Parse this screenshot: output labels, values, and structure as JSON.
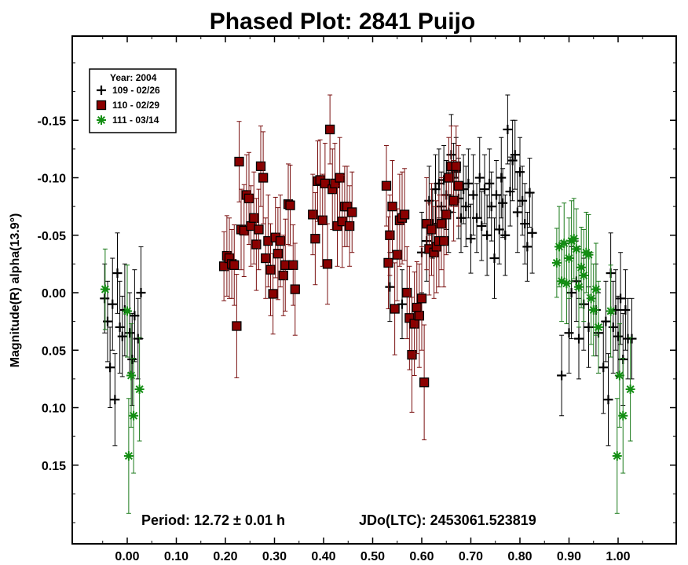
{
  "chart_data": {
    "type": "scatter",
    "title": "Phased Plot: 2841 Puijo",
    "xlabel": "",
    "ylabel": "Magnitude(R) alpha(13.9°)",
    "xlim": [
      -0.1,
      1.08
    ],
    "ylim": [
      0.22,
      -0.22
    ],
    "y_inverted": true,
    "x_ticks": [
      0.0,
      0.1,
      0.2,
      0.3,
      0.4,
      0.5,
      0.6,
      0.7,
      0.8,
      0.9,
      1.0
    ],
    "x_tick_labels": [
      "0.00",
      "0.10",
      "0.20",
      "0.30",
      "0.40",
      "0.50",
      "0.60",
      "0.70",
      "0.80",
      "0.90",
      "1.00"
    ],
    "y_ticks": [
      -0.15,
      -0.1,
      -0.05,
      0.0,
      0.05,
      0.1,
      0.15
    ],
    "y_tick_labels": [
      "-0.15",
      "-0.10",
      "-0.05",
      "0.00",
      "0.05",
      "0.10",
      "0.15"
    ],
    "legend": {
      "title": "Year: 2004",
      "position": "top-left"
    },
    "annotations": {
      "period": "Period: 12.72 ± 0.01 h",
      "epoch": "JDo(LTC): 2453061.523819"
    },
    "series": [
      {
        "name": "109 - 02/26",
        "marker": "plus",
        "color": "#000000",
        "points": [
          [
            -0.046,
            0.005,
            0.03
          ],
          [
            -0.04,
            0.025,
            0.035
          ],
          [
            -0.035,
            0.065,
            0.035
          ],
          [
            -0.03,
            0.01,
            0.04
          ],
          [
            -0.025,
            0.093,
            0.04
          ],
          [
            -0.02,
            -0.017,
            0.035
          ],
          [
            -0.015,
            0.03,
            0.04
          ],
          [
            -0.01,
            0.038,
            0.035
          ],
          [
            -0.005,
            0.015,
            0.04
          ],
          [
            0.005,
            0.035,
            0.035
          ],
          [
            0.01,
            0.058,
            0.04
          ],
          [
            0.015,
            0.02,
            0.04
          ],
          [
            0.022,
            0.04,
            0.035
          ],
          [
            0.028,
            0.0,
            0.04
          ],
          [
            0.535,
            -0.005,
            0.03
          ],
          [
            0.56,
            0.01,
            0.03
          ],
          [
            0.6,
            -0.035,
            0.035
          ],
          [
            0.61,
            -0.045,
            0.035
          ],
          [
            0.615,
            -0.08,
            0.03
          ],
          [
            0.622,
            -0.06,
            0.03
          ],
          [
            0.628,
            -0.09,
            0.03
          ],
          [
            0.635,
            -0.095,
            0.03
          ],
          [
            0.64,
            -0.075,
            0.03
          ],
          [
            0.645,
            -0.098,
            0.03
          ],
          [
            0.65,
            -0.085,
            0.03
          ],
          [
            0.655,
            -0.07,
            0.035
          ],
          [
            0.66,
            -0.12,
            0.035
          ],
          [
            0.665,
            -0.1,
            0.03
          ],
          [
            0.67,
            -0.105,
            0.03
          ],
          [
            0.675,
            -0.082,
            0.035
          ],
          [
            0.68,
            -0.065,
            0.03
          ],
          [
            0.685,
            -0.09,
            0.03
          ],
          [
            0.69,
            -0.075,
            0.035
          ],
          [
            0.695,
            -0.095,
            0.03
          ],
          [
            0.7,
            -0.047,
            0.03
          ],
          [
            0.705,
            -0.085,
            0.035
          ],
          [
            0.712,
            -0.065,
            0.03
          ],
          [
            0.718,
            -0.1,
            0.035
          ],
          [
            0.722,
            -0.058,
            0.03
          ],
          [
            0.728,
            -0.09,
            0.03
          ],
          [
            0.733,
            -0.05,
            0.035
          ],
          [
            0.738,
            -0.095,
            0.03
          ],
          [
            0.742,
            -0.075,
            0.03
          ],
          [
            0.748,
            -0.03,
            0.035
          ],
          [
            0.752,
            -0.085,
            0.03
          ],
          [
            0.758,
            -0.055,
            0.03
          ],
          [
            0.762,
            -0.1,
            0.035
          ],
          [
            0.765,
            -0.078,
            0.03
          ],
          [
            0.77,
            -0.05,
            0.035
          ],
          [
            0.775,
            -0.142,
            0.03
          ],
          [
            0.78,
            -0.088,
            0.03
          ],
          [
            0.785,
            -0.115,
            0.035
          ],
          [
            0.79,
            -0.12,
            0.03
          ],
          [
            0.795,
            -0.07,
            0.035
          ],
          [
            0.8,
            -0.105,
            0.03
          ],
          [
            0.805,
            -0.08,
            0.03
          ],
          [
            0.81,
            -0.06,
            0.035
          ],
          [
            0.815,
            -0.04,
            0.03
          ],
          [
            0.82,
            -0.087,
            0.03
          ],
          [
            0.825,
            -0.052,
            0.035
          ],
          [
            0.885,
            0.072,
            0.035
          ],
          [
            0.9,
            0.035,
            0.035
          ],
          [
            0.905,
            0.0,
            0.04
          ],
          [
            0.915,
            -0.01,
            0.035
          ],
          [
            0.92,
            0.04,
            0.035
          ],
          [
            0.93,
            0.01,
            0.04
          ],
          [
            0.94,
            0.03,
            0.035
          ],
          [
            0.955,
            0.015,
            0.04
          ],
          [
            0.96,
            0.035,
            0.035
          ],
          [
            0.97,
            0.065,
            0.04
          ],
          [
            0.975,
            0.025,
            0.035
          ],
          [
            0.98,
            0.093,
            0.04
          ],
          [
            0.985,
            -0.017,
            0.035
          ],
          [
            0.99,
            0.03,
            0.04
          ],
          [
            0.995,
            0.015,
            0.035
          ],
          [
            1.0,
            0.038,
            0.035
          ],
          [
            1.005,
            0.005,
            0.04
          ],
          [
            1.01,
            0.058,
            0.04
          ],
          [
            1.015,
            0.015,
            0.035
          ],
          [
            1.02,
            0.04,
            0.035
          ],
          [
            1.028,
            0.04,
            0.035
          ]
        ]
      },
      {
        "name": "110 - 02/29",
        "marker": "square",
        "color": "#8b0000",
        "points": [
          [
            0.197,
            -0.023,
            0.03
          ],
          [
            0.203,
            -0.032,
            0.035
          ],
          [
            0.208,
            -0.03,
            0.035
          ],
          [
            0.213,
            -0.025,
            0.03
          ],
          [
            0.218,
            -0.024,
            0.035
          ],
          [
            0.223,
            0.029,
            0.045
          ],
          [
            0.228,
            -0.114,
            0.035
          ],
          [
            0.232,
            -0.055,
            0.035
          ],
          [
            0.238,
            -0.054,
            0.04
          ],
          [
            0.243,
            -0.085,
            0.035
          ],
          [
            0.248,
            -0.082,
            0.04
          ],
          [
            0.252,
            -0.058,
            0.035
          ],
          [
            0.258,
            -0.065,
            0.04
          ],
          [
            0.263,
            -0.042,
            0.04
          ],
          [
            0.268,
            -0.055,
            0.035
          ],
          [
            0.272,
            -0.11,
            0.035
          ],
          [
            0.277,
            -0.1,
            0.04
          ],
          [
            0.282,
            -0.03,
            0.035
          ],
          [
            0.287,
            -0.045,
            0.04
          ],
          [
            0.292,
            -0.02,
            0.04
          ],
          [
            0.297,
            0.001,
            0.035
          ],
          [
            0.302,
            -0.048,
            0.035
          ],
          [
            0.307,
            -0.034,
            0.04
          ],
          [
            0.312,
            -0.045,
            0.04
          ],
          [
            0.318,
            -0.015,
            0.035
          ],
          [
            0.322,
            -0.024,
            0.04
          ],
          [
            0.328,
            -0.077,
            0.035
          ],
          [
            0.332,
            -0.076,
            0.035
          ],
          [
            0.338,
            -0.024,
            0.035
          ],
          [
            0.342,
            -0.003,
            0.04
          ],
          [
            0.378,
            -0.068,
            0.035
          ],
          [
            0.383,
            -0.047,
            0.04
          ],
          [
            0.388,
            -0.097,
            0.035
          ],
          [
            0.393,
            -0.098,
            0.035
          ],
          [
            0.398,
            -0.063,
            0.04
          ],
          [
            0.403,
            -0.095,
            0.035
          ],
          [
            0.408,
            -0.025,
            0.035
          ],
          [
            0.413,
            -0.142,
            0.03
          ],
          [
            0.418,
            -0.09,
            0.035
          ],
          [
            0.423,
            -0.095,
            0.035
          ],
          [
            0.428,
            -0.058,
            0.035
          ],
          [
            0.433,
            -0.1,
            0.035
          ],
          [
            0.438,
            -0.062,
            0.04
          ],
          [
            0.443,
            -0.075,
            0.035
          ],
          [
            0.448,
            -0.075,
            0.035
          ],
          [
            0.453,
            -0.058,
            0.035
          ],
          [
            0.458,
            -0.07,
            0.035
          ],
          [
            0.528,
            -0.093,
            0.035
          ],
          [
            0.532,
            -0.026,
            0.04
          ],
          [
            0.535,
            -0.05,
            0.035
          ],
          [
            0.54,
            -0.075,
            0.04
          ],
          [
            0.545,
            0.014,
            0.04
          ],
          [
            0.55,
            -0.033,
            0.04
          ],
          [
            0.555,
            -0.063,
            0.04
          ],
          [
            0.56,
            -0.065,
            0.04
          ],
          [
            0.565,
            -0.068,
            0.04
          ],
          [
            0.57,
            0.0,
            0.04
          ],
          [
            0.575,
            0.022,
            0.045
          ],
          [
            0.58,
            0.054,
            0.05
          ],
          [
            0.585,
            0.027,
            0.045
          ],
          [
            0.59,
            0.013,
            0.04
          ],
          [
            0.595,
            0.02,
            0.045
          ],
          [
            0.6,
            0.005,
            0.045
          ],
          [
            0.605,
            0.078,
            0.05
          ],
          [
            0.61,
            -0.06,
            0.04
          ],
          [
            0.615,
            -0.038,
            0.04
          ],
          [
            0.62,
            -0.055,
            0.04
          ],
          [
            0.625,
            -0.035,
            0.04
          ],
          [
            0.63,
            -0.04,
            0.04
          ],
          [
            0.635,
            -0.045,
            0.04
          ],
          [
            0.64,
            -0.06,
            0.04
          ],
          [
            0.645,
            -0.045,
            0.04
          ],
          [
            0.65,
            -0.068,
            0.035
          ],
          [
            0.655,
            -0.1,
            0.035
          ],
          [
            0.66,
            -0.11,
            0.035
          ],
          [
            0.665,
            -0.08,
            0.035
          ],
          [
            0.67,
            -0.11,
            0.035
          ],
          [
            0.675,
            -0.093,
            0.035
          ]
        ]
      },
      {
        "name": "111 - 03/14",
        "marker": "asterisk",
        "color": "#138e13",
        "points": [
          [
            -0.045,
            -0.003,
            0.035
          ],
          [
            0.0,
            0.016,
            0.04
          ],
          [
            0.003,
            0.142,
            0.05
          ],
          [
            0.008,
            0.072,
            0.045
          ],
          [
            0.013,
            0.107,
            0.05
          ],
          [
            0.025,
            0.084,
            0.045
          ],
          [
            0.875,
            -0.026,
            0.03
          ],
          [
            0.88,
            -0.04,
            0.035
          ],
          [
            0.885,
            -0.01,
            0.035
          ],
          [
            0.89,
            -0.043,
            0.035
          ],
          [
            0.895,
            -0.008,
            0.035
          ],
          [
            0.9,
            -0.03,
            0.035
          ],
          [
            0.905,
            -0.045,
            0.035
          ],
          [
            0.91,
            -0.047,
            0.035
          ],
          [
            0.915,
            -0.038,
            0.035
          ],
          [
            0.92,
            -0.005,
            0.035
          ],
          [
            0.925,
            -0.022,
            0.035
          ],
          [
            0.93,
            -0.015,
            0.04
          ],
          [
            0.935,
            -0.035,
            0.035
          ],
          [
            0.94,
            -0.033,
            0.035
          ],
          [
            0.945,
            0.005,
            0.04
          ],
          [
            0.95,
            0.015,
            0.04
          ],
          [
            0.955,
            -0.003,
            0.04
          ],
          [
            0.96,
            0.03,
            0.04
          ],
          [
            0.985,
            0.016,
            0.04
          ],
          [
            0.998,
            0.142,
            0.05
          ],
          [
            1.003,
            0.072,
            0.045
          ],
          [
            1.01,
            0.107,
            0.05
          ],
          [
            1.025,
            0.084,
            0.045
          ]
        ]
      }
    ]
  }
}
